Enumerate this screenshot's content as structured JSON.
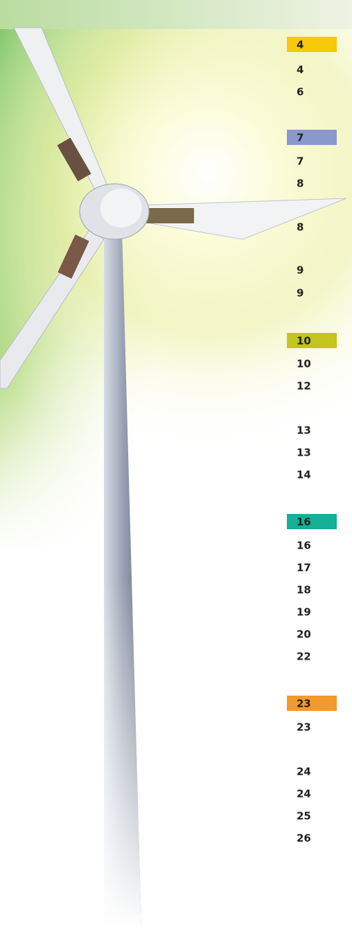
{
  "sections": [
    {
      "color": "#f7c90a",
      "page": "4",
      "items": [
        "4",
        "6"
      ]
    },
    {
      "color": "#8b98cd",
      "page": "7",
      "items": [
        "7",
        "8",
        "8",
        "9",
        "9"
      ]
    },
    {
      "color": "#c4c41c",
      "page": "10",
      "items": [
        "10",
        "12",
        "13",
        "13",
        "14"
      ]
    },
    {
      "color": "#16af98",
      "page": "16",
      "items": [
        "16",
        "17",
        "18",
        "19",
        "20",
        "22"
      ]
    },
    {
      "color": "#f49a2b",
      "page": "23",
      "items": [
        "23",
        "24",
        "24",
        "25",
        "26"
      ]
    }
  ]
}
